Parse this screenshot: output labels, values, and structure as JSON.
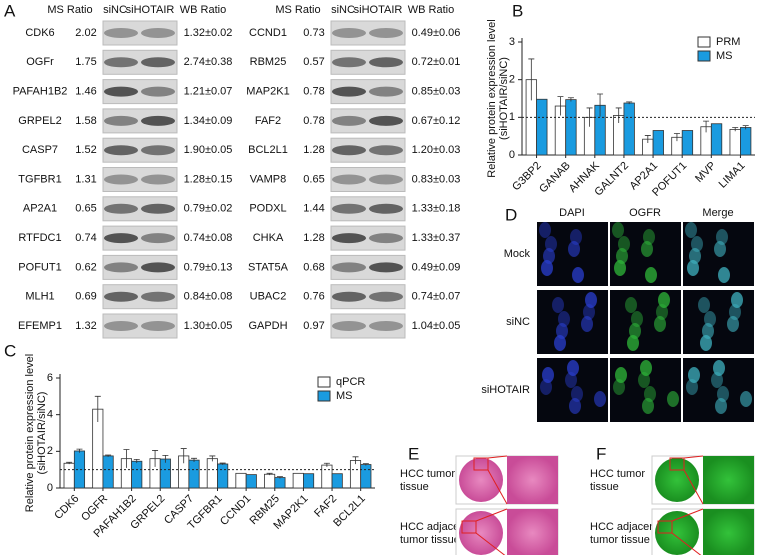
{
  "panel_labels": [
    "A",
    "B",
    "C",
    "D",
    "E",
    "F"
  ],
  "panel_a": {
    "headers": [
      "MS Ratio",
      "siNC",
      "siHOTAIR",
      "WB Ratio"
    ],
    "left_rows": [
      [
        "CDK6",
        "2.02",
        "1.32±0.02"
      ],
      [
        "OGFr",
        "1.75",
        "2.74±0.38"
      ],
      [
        "PAFAH1B2",
        "1.46",
        "1.21±0.07"
      ],
      [
        "GRPEL2",
        "1.58",
        "1.34±0.09"
      ],
      [
        "CASP7",
        "1.52",
        "1.90±0.05"
      ],
      [
        "TGFBR1",
        "1.31",
        "1.28±0.15"
      ],
      [
        "AP2A1",
        "0.65",
        "0.79±0.02"
      ],
      [
        "RTFDC1",
        "0.74",
        "0.74±0.08"
      ],
      [
        "POFUT1",
        "0.62",
        "0.79±0.13"
      ],
      [
        "MLH1",
        "0.69",
        "0.84±0.08"
      ],
      [
        "EFEMP1",
        "1.32",
        "1.30±0.05"
      ]
    ],
    "right_rows": [
      [
        "CCND1",
        "0.73",
        "0.49±0.06"
      ],
      [
        "RBM25",
        "0.57",
        "0.72±0.01"
      ],
      [
        "MAP2K1",
        "0.78",
        "0.85±0.03"
      ],
      [
        "FAF2",
        "0.78",
        "0.67±0.12"
      ],
      [
        "BCL2L1",
        "1.28",
        "1.20±0.03"
      ],
      [
        "VAMP8",
        "0.65",
        "0.83±0.03"
      ],
      [
        "PODXL",
        "1.44",
        "1.33±0.18"
      ],
      [
        "CHKA",
        "1.28",
        "1.33±0.37"
      ],
      [
        "STAT5A",
        "0.68",
        "0.49±0.09"
      ],
      [
        "UBAC2",
        "0.76",
        "0.74±0.07"
      ],
      [
        "GAPDH",
        "0.97",
        "1.04±0.05"
      ]
    ]
  },
  "chart_data": [
    {
      "type": "bar",
      "categories": [
        "G3BP2",
        "GANAB",
        "AHNAK",
        "GALNT2",
        "AP2A1",
        "POFUT1",
        "MVP",
        "LIMA1"
      ],
      "series": [
        {
          "name": "PRM",
          "color": "#ffffff",
          "values": [
            2.0,
            1.3,
            1.0,
            1.05,
            0.42,
            0.47,
            0.75,
            0.68
          ],
          "errors": [
            0.55,
            0.25,
            0.25,
            0.2,
            0.1,
            0.1,
            0.15,
            0.05
          ]
        },
        {
          "name": "MS",
          "color": "#1a9be0",
          "values": [
            1.48,
            1.47,
            1.32,
            1.38,
            0.65,
            0.65,
            0.83,
            0.73
          ],
          "errors": [
            null,
            0.05,
            0.3,
            0.03,
            null,
            null,
            null,
            0.05
          ]
        }
      ],
      "edge_color": "#333333",
      "ylim": [
        0,
        3
      ],
      "yticks": [
        0,
        1,
        2,
        3
      ],
      "y_label": [
        "Relative protein expression level",
        "(siHOTAIR/siNC)"
      ],
      "reference_line": 1,
      "legend": "upper right"
    },
    {
      "type": "bar",
      "categories": [
        "CDK6",
        "OGFR",
        "PAFAH1B2",
        "GRPEL2",
        "CASP7",
        "TGFBR1",
        "CCND1",
        "RBM25",
        "MAP2K1",
        "FAF2",
        "BCL2L1"
      ],
      "series": [
        {
          "name": "qPCR",
          "color": "#ffffff",
          "values": [
            1.35,
            4.3,
            1.6,
            1.6,
            1.75,
            1.6,
            0.8,
            0.75,
            0.8,
            1.25,
            1.5
          ],
          "errors": [
            0.05,
            0.7,
            0.5,
            0.45,
            0.4,
            0.15,
            null,
            0.05,
            null,
            0.1,
            0.2
          ]
        },
        {
          "name": "MS",
          "color": "#1a9be0",
          "values": [
            2.02,
            1.75,
            1.46,
            1.58,
            1.52,
            1.31,
            0.73,
            0.57,
            0.78,
            0.78,
            1.28
          ],
          "errors": [
            0.1,
            0.05,
            0.1,
            0.2,
            0.1,
            0.05,
            null,
            0.05,
            null,
            null,
            0.05
          ]
        }
      ],
      "edge_color": "#333333",
      "ylim": [
        0,
        6
      ],
      "yticks": [
        0,
        2,
        4,
        6
      ],
      "y_label": [
        "Relative protein expression level",
        "(siHOTAIR/siNC)"
      ],
      "reference_line": 1,
      "legend": "upper right"
    }
  ],
  "panel_d": {
    "columns": [
      "DAPI",
      "OGFR",
      "Merge"
    ],
    "rows": [
      "Mock",
      "siNC",
      "siHOTAIR"
    ]
  },
  "panel_e": {
    "rows": [
      [
        "HCC tumor",
        "tissue"
      ],
      [
        "HCC adjacent",
        "tumor tissue"
      ]
    ]
  },
  "panel_f": {
    "rows": [
      [
        "HCC tumor",
        "tissue"
      ],
      [
        "HCC adjacent",
        "tumor tissue"
      ]
    ]
  }
}
